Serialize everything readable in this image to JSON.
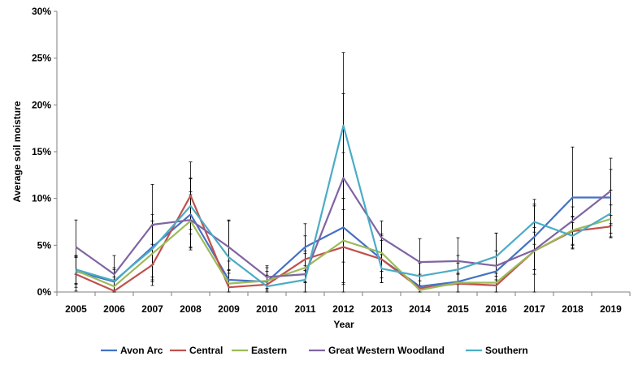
{
  "chart_data": {
    "type": "line",
    "xlabel": "Year",
    "ylabel": "Average soil moisture",
    "ylim": [
      0,
      30
    ],
    "y_ticks": [
      "0%",
      "5%",
      "10%",
      "15%",
      "20%",
      "25%",
      "30%"
    ],
    "categories": [
      "2005",
      "2006",
      "2007",
      "2008",
      "2009",
      "2010",
      "2011",
      "2012",
      "2013",
      "2014",
      "2015",
      "2016",
      "2017",
      "2018",
      "2019"
    ],
    "grid": false,
    "error_bars": true,
    "legend_position": "bottom",
    "series": [
      {
        "name": "Avon Arc",
        "color": "#4472C4",
        "values": [
          2.2,
          1.1,
          4.8,
          8.3,
          1.3,
          1.1,
          4.8,
          6.9,
          3.5,
          0.6,
          1.1,
          2.2,
          5.9,
          10.1,
          10.1
        ],
        "errors": [
          1.7,
          1.5,
          3.5,
          3.8,
          2.0,
          1.5,
          2.5,
          8.0,
          2.5,
          2.5,
          2.0,
          2.2,
          3.5,
          5.4,
          3.0
        ]
      },
      {
        "name": "Central",
        "color": "#C0504D",
        "values": [
          1.9,
          0.1,
          2.9,
          10.3,
          0.5,
          0.8,
          3.5,
          4.8,
          3.5,
          0.4,
          0.9,
          0.7,
          4.4,
          6.5,
          7.0
        ],
        "errors": [
          1.8,
          1.2,
          2.2,
          3.6,
          1.8,
          1.0,
          2.5,
          4.0,
          2.0,
          1.5,
          1.0,
          1.0,
          2.5,
          1.5,
          1.2
        ]
      },
      {
        "name": "Eastern",
        "color": "#9BBB59",
        "values": [
          2.3,
          0.6,
          4.1,
          7.6,
          0.9,
          1.2,
          2.6,
          5.5,
          4.2,
          0.2,
          1.0,
          1.0,
          4.4,
          6.6,
          7.8
        ],
        "errors": [
          1.5,
          1.0,
          3.0,
          2.8,
          1.5,
          1.0,
          1.5,
          4.5,
          2.0,
          1.0,
          1.0,
          1.0,
          2.0,
          1.5,
          1.5
        ]
      },
      {
        "name": "Great Western Woodland",
        "color": "#8064A2",
        "values": [
          4.8,
          1.9,
          7.2,
          7.7,
          4.8,
          1.6,
          1.9,
          12.2,
          5.8,
          3.2,
          3.3,
          2.8,
          4.5,
          7.6,
          10.8
        ],
        "errors": [
          2.9,
          2.0,
          4.3,
          3.0,
          2.8,
          1.2,
          2.5,
          9.0,
          1.8,
          2.5,
          2.5,
          3.5,
          4.7,
          1.5,
          3.5
        ]
      },
      {
        "name": "Southern",
        "color": "#4BACC6",
        "values": [
          2.4,
          1.2,
          4.6,
          9.2,
          3.7,
          0.6,
          1.3,
          17.8,
          2.5,
          1.7,
          2.4,
          3.8,
          7.5,
          6.0,
          8.4
        ],
        "errors": [
          1.5,
          1.2,
          3.0,
          3.0,
          4.0,
          1.0,
          1.5,
          7.8,
          1.5,
          1.5,
          1.5,
          2.5,
          2.4,
          1.4,
          2.5
        ]
      }
    ]
  }
}
